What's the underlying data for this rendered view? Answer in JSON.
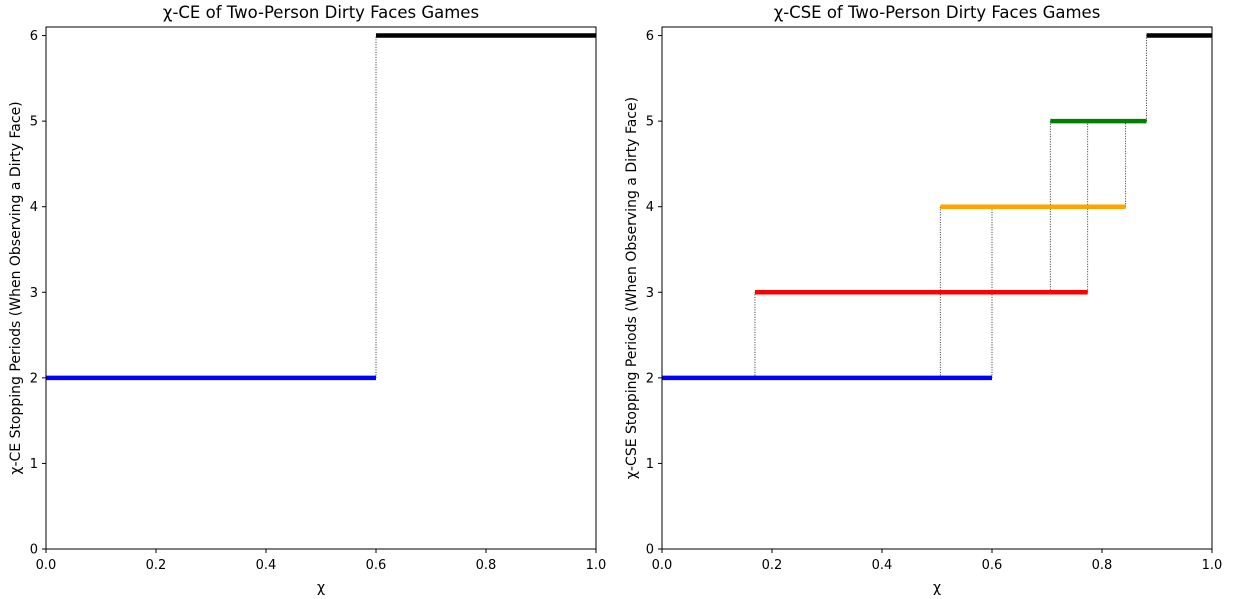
{
  "chart_data": [
    {
      "type": "line",
      "title": "χ-CE of Two-Person Dirty Faces Games",
      "xlabel": "χ",
      "ylabel": "χ-CE Stopping Periods (When Observing a Dirty Face)",
      "xlim": [
        0.0,
        1.0
      ],
      "ylim": [
        0,
        6.1
      ],
      "xticks": [
        "0.0",
        "0.2",
        "0.4",
        "0.6",
        "0.8",
        "1.0"
      ],
      "yticks": [
        "0",
        "1",
        "2",
        "3",
        "4",
        "5",
        "6"
      ],
      "grid": false,
      "series": [
        {
          "color": "#0000ff",
          "y": 2,
          "x_start": 0.0,
          "x_end": 0.6
        },
        {
          "color": "#000000",
          "y": 6,
          "x_start": 0.6,
          "x_end": 1.0
        }
      ],
      "connectors": [
        {
          "x": 0.6,
          "y_from": 2,
          "y_to": 6
        }
      ]
    },
    {
      "type": "line",
      "title": "χ-CSE of Two-Person Dirty Faces Games",
      "xlabel": "χ",
      "ylabel": "χ-CSE Stopping Periods (When Observing a Dirty Face)",
      "xlim": [
        0.0,
        1.0
      ],
      "ylim": [
        0,
        6.1
      ],
      "xticks": [
        "0.0",
        "0.2",
        "0.4",
        "0.6",
        "0.8",
        "1.0"
      ],
      "yticks": [
        "0",
        "1",
        "2",
        "3",
        "4",
        "5",
        "6"
      ],
      "grid": false,
      "series": [
        {
          "color": "#0000ff",
          "y": 2,
          "x_start": 0.0,
          "x_end": 0.6
        },
        {
          "color": "#ff0000",
          "y": 3,
          "x_start": 0.169,
          "x_end": 0.774
        },
        {
          "color": "#ffa500",
          "y": 4,
          "x_start": 0.506,
          "x_end": 0.843
        },
        {
          "color": "#008000",
          "y": 5,
          "x_start": 0.706,
          "x_end": 0.881
        },
        {
          "color": "#000000",
          "y": 6,
          "x_start": 0.881,
          "x_end": 1.0
        }
      ],
      "connectors": [
        {
          "x": 0.169,
          "y_from": 2,
          "y_to": 3
        },
        {
          "x": 0.506,
          "y_from": 2,
          "y_to": 4
        },
        {
          "x": 0.6,
          "y_from": 2,
          "y_to": 4
        },
        {
          "x": 0.706,
          "y_from": 3,
          "y_to": 5
        },
        {
          "x": 0.774,
          "y_from": 3,
          "y_to": 5
        },
        {
          "x": 0.843,
          "y_from": 4,
          "y_to": 5
        },
        {
          "x": 0.881,
          "y_from": 5,
          "y_to": 6
        }
      ]
    }
  ]
}
